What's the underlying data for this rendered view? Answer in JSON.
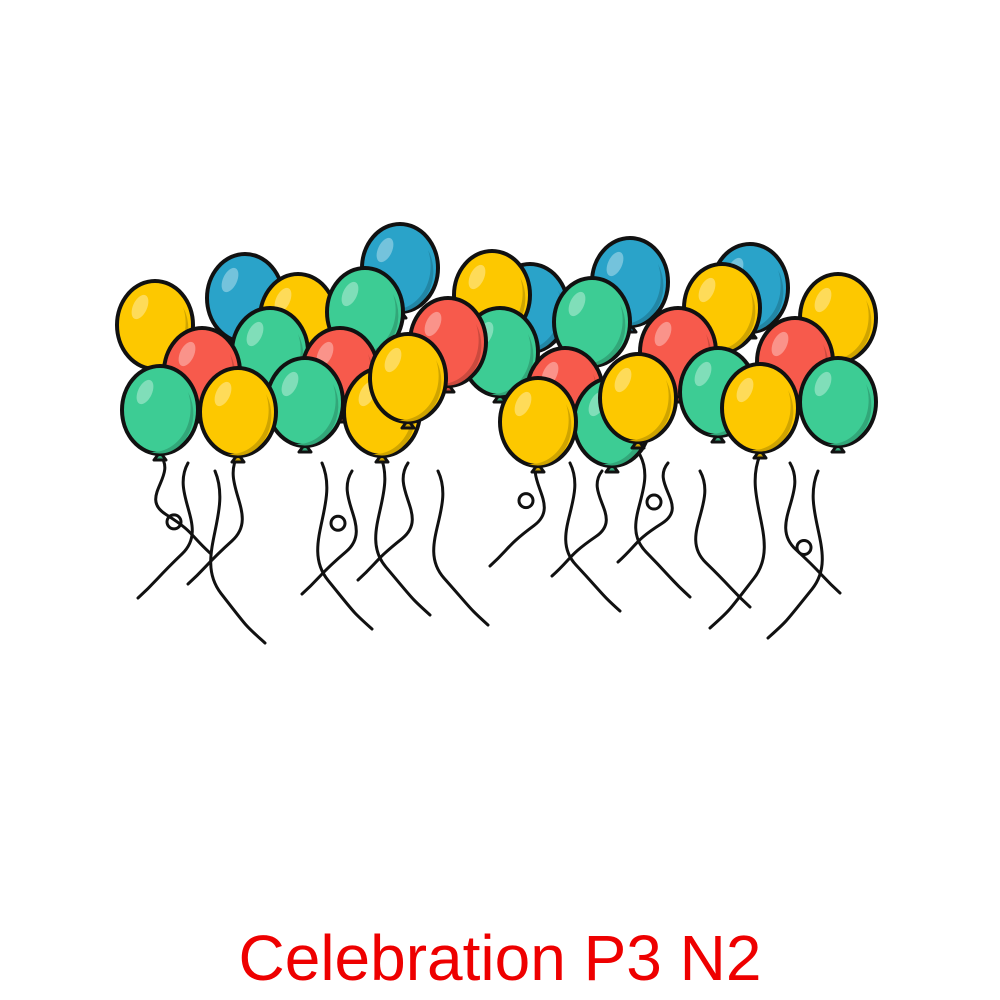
{
  "caption": {
    "text": "Celebration P3 N2",
    "color": "#ee0000"
  },
  "illustration": {
    "subject_icon": "balloon-bunch-icon",
    "palette": {
      "yellow": "#fdc800",
      "blue": "#2aa3c9",
      "green": "#3dcc94",
      "red": "#f75a4c",
      "outline": "#111111"
    }
  }
}
